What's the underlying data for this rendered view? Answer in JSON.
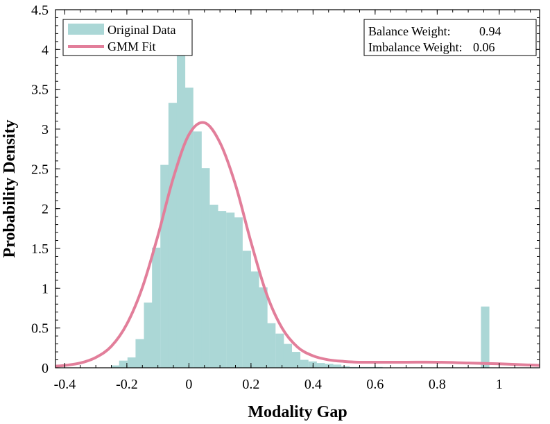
{
  "chart_data": {
    "type": "bar",
    "title": "",
    "xlabel": "Modality Gap",
    "ylabel": "Probability Density",
    "xlim": [
      -0.43,
      1.13
    ],
    "ylim": [
      0,
      4.5
    ],
    "xticks": [
      -0.4,
      -0.2,
      0,
      0.2,
      0.4,
      0.6,
      0.8,
      1
    ],
    "xtick_labels": [
      "-0.4",
      "-0.2",
      "0",
      "0.2",
      "0.4",
      "0.6",
      "0.8",
      "1"
    ],
    "yticks": [
      0,
      0.5,
      1,
      1.5,
      2,
      2.5,
      3,
      3.5,
      4,
      4.5
    ],
    "ytick_labels": [
      "0",
      "0.5",
      "1",
      "1.5",
      "2",
      "2.5",
      "3",
      "3.5",
      "4",
      "4.5"
    ],
    "grid": false,
    "bin_width": 0.0265,
    "series": [
      {
        "name": "Original Data",
        "kind": "histogram",
        "color": "#abd7d6",
        "bin_starts": [
          -0.251,
          -0.225,
          -0.198,
          -0.172,
          -0.145,
          -0.119,
          -0.092,
          -0.066,
          -0.039,
          -0.013,
          0.014,
          0.04,
          0.067,
          0.093,
          0.12,
          0.146,
          0.173,
          0.199,
          0.226,
          0.252,
          0.279,
          0.305,
          0.332,
          0.358,
          0.385,
          0.411,
          0.438,
          0.464,
          0.491,
          0.517,
          0.544,
          0.57,
          0.597,
          0.623,
          0.65,
          0.676,
          0.703,
          0.729,
          0.756,
          0.782,
          0.809,
          0.835,
          0.862,
          0.888,
          0.915,
          0.941,
          0.968,
          0.994,
          1.021
        ],
        "densities": [
          0.03,
          0.09,
          0.13,
          0.36,
          0.82,
          1.51,
          2.55,
          3.33,
          3.92,
          3.52,
          2.97,
          2.51,
          2.05,
          1.97,
          1.95,
          1.89,
          1.47,
          1.21,
          1.01,
          0.56,
          0.43,
          0.3,
          0.2,
          0.1,
          0.08,
          0.06,
          0.05,
          0.04,
          0.02,
          0.01,
          0.01,
          0.01,
          0.01,
          0.0,
          0.0,
          0.0,
          0.0,
          0.0,
          0.0,
          0.0,
          0.0,
          0.0,
          0.0,
          0.0,
          0.0,
          0.77,
          0.0,
          0.0,
          0.0
        ]
      },
      {
        "name": "GMM Fit",
        "kind": "line",
        "color": "#e27e9a",
        "x": [
          -0.43,
          -0.4,
          -0.35,
          -0.3,
          -0.25,
          -0.2,
          -0.15,
          -0.1,
          -0.05,
          0.0,
          0.05,
          0.1,
          0.15,
          0.2,
          0.25,
          0.3,
          0.35,
          0.4,
          0.45,
          0.5,
          0.55,
          0.6,
          0.7,
          0.8,
          0.9,
          1.0,
          1.13
        ],
        "y": [
          0.02,
          0.03,
          0.06,
          0.13,
          0.27,
          0.55,
          1.01,
          1.66,
          2.39,
          2.93,
          3.08,
          2.83,
          2.3,
          1.58,
          0.93,
          0.5,
          0.26,
          0.15,
          0.1,
          0.08,
          0.07,
          0.07,
          0.07,
          0.07,
          0.06,
          0.05,
          0.03
        ]
      }
    ],
    "legend": {
      "placement": "top-left",
      "entries": [
        "Original Data",
        "GMM Fit"
      ]
    },
    "annotation": {
      "placement": "top-right",
      "line1_label": "Balance Weight:",
      "line1_value": "0.94",
      "line2_label": "Imbalance Weight:",
      "line2_value": "0.06"
    }
  }
}
